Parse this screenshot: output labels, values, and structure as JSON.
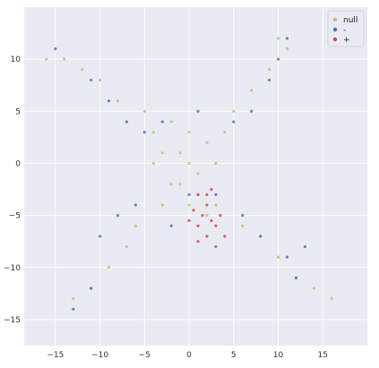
{
  "chart_data": {
    "type": "scatter",
    "title": "",
    "xlabel": "",
    "ylabel": "",
    "xlim": [
      -18.5,
      20
    ],
    "ylim": [
      -17.5,
      15
    ],
    "xticks": [
      -15,
      -10,
      -5,
      0,
      5,
      10,
      15
    ],
    "yticks": [
      -15,
      -10,
      -5,
      0,
      5,
      10
    ],
    "grid": true,
    "legend_position": "top-right",
    "series": [
      {
        "name": "null",
        "color": "#ccb974",
        "description": "Dense cloud centered near origin with four diagonal arms reaching about (-16, 10), (11, 12), (-12, -14), (17, -13).",
        "points": [
          [
            0,
            0
          ],
          [
            -1,
            1
          ],
          [
            1,
            -1
          ],
          [
            2,
            2
          ],
          [
            -2,
            -2
          ],
          [
            3,
            0
          ],
          [
            -3,
            1
          ],
          [
            0,
            3
          ],
          [
            1,
            -3
          ],
          [
            -1,
            -2
          ],
          [
            4,
            3
          ],
          [
            -4,
            3
          ],
          [
            3,
            -4
          ],
          [
            -3,
            -4
          ],
          [
            5,
            5
          ],
          [
            -5,
            5
          ],
          [
            6,
            -6
          ],
          [
            -6,
            -6
          ],
          [
            7,
            7
          ],
          [
            -8,
            6
          ],
          [
            8,
            -7
          ],
          [
            -7,
            -8
          ],
          [
            9,
            9
          ],
          [
            -10,
            8
          ],
          [
            10,
            -9
          ],
          [
            -9,
            -10
          ],
          [
            11,
            11
          ],
          [
            -12,
            9
          ],
          [
            12,
            -11
          ],
          [
            -11,
            -12
          ],
          [
            -14,
            10
          ],
          [
            14,
            -12
          ],
          [
            -13,
            -13
          ],
          [
            16,
            -13
          ],
          [
            -16,
            10
          ],
          [
            10,
            12
          ],
          [
            -2,
            4
          ],
          [
            2,
            -5
          ],
          [
            0,
            -4
          ],
          [
            -4,
            0
          ]
        ]
      },
      {
        "name": "-",
        "color": "#4c72b0",
        "description": "Sparser points mostly along the outer edges of the arms.",
        "points": [
          [
            -15,
            11
          ],
          [
            -11,
            8
          ],
          [
            -9,
            6
          ],
          [
            -7,
            4
          ],
          [
            -5,
            3
          ],
          [
            5,
            4
          ],
          [
            7,
            5
          ],
          [
            9,
            8
          ],
          [
            11,
            12
          ],
          [
            10,
            10
          ],
          [
            -10,
            -7
          ],
          [
            -8,
            -5
          ],
          [
            -6,
            -4
          ],
          [
            -11,
            -12
          ],
          [
            -13,
            -14
          ],
          [
            6,
            -5
          ],
          [
            8,
            -7
          ],
          [
            11,
            -9
          ],
          [
            13,
            -8
          ],
          [
            12,
            -11
          ],
          [
            -2,
            -6
          ],
          [
            3,
            -3
          ],
          [
            -3,
            4
          ],
          [
            1,
            5
          ],
          [
            0,
            -3
          ]
        ]
      },
      {
        "name": "+",
        "color": "#c44e52",
        "description": "Compact cluster below the origin, x roughly -1 to 5, y roughly -2 to -8.",
        "points": [
          [
            1,
            -3
          ],
          [
            2,
            -4
          ],
          [
            1.5,
            -5
          ],
          [
            2.5,
            -5.5
          ],
          [
            1,
            -6
          ],
          [
            3,
            -6
          ],
          [
            2,
            -7
          ],
          [
            0.5,
            -4.5
          ],
          [
            3.5,
            -5
          ],
          [
            2,
            -3
          ],
          [
            4,
            -7
          ],
          [
            1,
            -7.5
          ],
          [
            2.5,
            -2.5
          ],
          [
            0,
            -5.5
          ],
          [
            3,
            -8
          ]
        ]
      }
    ]
  }
}
